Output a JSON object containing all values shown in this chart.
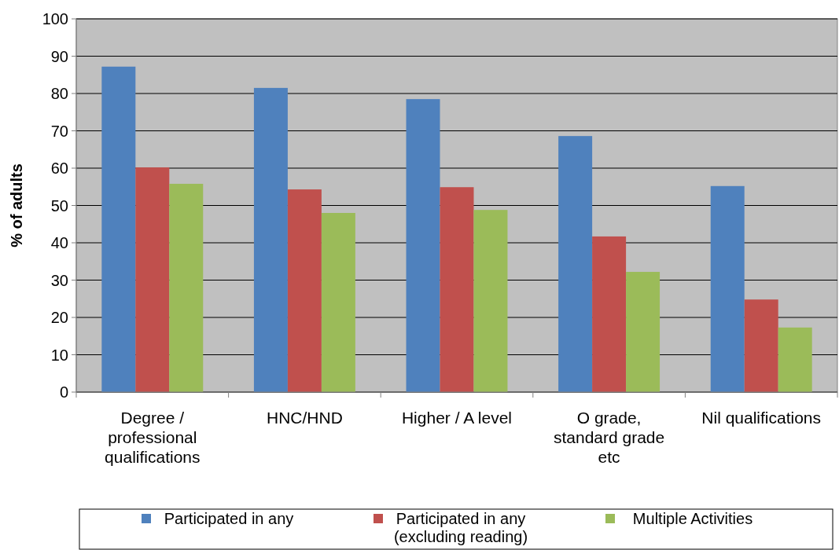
{
  "chart_data": {
    "type": "bar",
    "ylabel": "% of adults",
    "categories": [
      "Degree /\nprofessional\nqualifications",
      "HNC/HND",
      "Higher / A level",
      "O grade,\nstandard grade\netc",
      "Nil qualifications"
    ],
    "series": [
      {
        "name": "Participated in any",
        "color": "#4f81bd",
        "values": [
          87.2,
          81.5,
          78.5,
          68.6,
          55.2
        ]
      },
      {
        "name": "Participated in any\n(excluding reading)",
        "color": "#c0504d",
        "values": [
          60.2,
          54.3,
          54.9,
          41.7,
          24.8
        ]
      },
      {
        "name": "Multiple Activities",
        "color": "#9bbb59",
        "values": [
          55.8,
          48,
          48.8,
          32.2,
          17.3
        ]
      }
    ],
    "ylim": [
      0,
      100
    ],
    "yticks": [
      0,
      10,
      20,
      30,
      40,
      50,
      60,
      70,
      80,
      90,
      100
    ],
    "grid": "y",
    "legend": "bottom"
  }
}
